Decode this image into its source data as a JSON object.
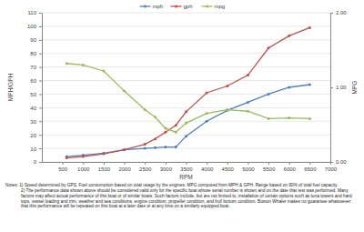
{
  "chart_data": {
    "type": "line",
    "x_label": "RPM",
    "y_label": "MPH/GPH",
    "y2_label": "MPG",
    "x": [
      600,
      1000,
      1500,
      2000,
      2500,
      2750,
      3000,
      3250,
      3500,
      4000,
      4500,
      5000,
      5500,
      6000,
      6500
    ],
    "series": [
      {
        "name": "mph",
        "color": "#4f81bd",
        "values": [
          4,
          5,
          6.5,
          9,
          10,
          10.5,
          11,
          11,
          19,
          30,
          38,
          44,
          50,
          55,
          57
        ]
      },
      {
        "name": "gph",
        "color": "#c0504d",
        "values": [
          3,
          4,
          6,
          9,
          13,
          17,
          22,
          27,
          37,
          51,
          56,
          64,
          84,
          93,
          99
        ]
      },
      {
        "name": "mpg",
        "color": "#9bbb59",
        "axis": "y2",
        "values": [
          1.32,
          1.3,
          1.22,
          0.95,
          0.7,
          0.6,
          0.45,
          0.4,
          0.52,
          0.65,
          0.7,
          0.68,
          0.58,
          0.59,
          0.58
        ]
      }
    ],
    "xlim": [
      0,
      7000
    ],
    "xticks": [
      500,
      1000,
      1500,
      2000,
      2500,
      3000,
      3500,
      4000,
      4500,
      5000,
      5500,
      6000,
      6500,
      7000
    ],
    "ylim": [
      0,
      110
    ],
    "yticks": [
      0,
      10,
      20,
      30,
      40,
      50,
      60,
      70,
      80,
      90,
      100,
      110
    ],
    "y2lim": [
      0,
      2
    ],
    "y2ticks": [
      {
        "value": 0,
        "label": "0.00"
      },
      {
        "value": 1,
        "label": "1.00"
      },
      {
        "value": 2,
        "label": "2.00"
      }
    ],
    "grid": true,
    "legend": "top",
    "marker": "circle",
    "annotations": [
      "Notes: 1) Speed determined by GPS. Fuel consumption based on total usage by the engines. MPG computed from MPH & GPH. Range based on 90% of total fuel capacity.",
      "2) The performance data shown above should be considered valid only for the specific boat whose serial number is shown and on the date that test was performed. Many factors may affect actual performance of this boat or of similar boats. Such factors include, but are not limited to, installation of certain options such as tuna towers and hard tops, vessel loading and trim, weather and sea conditions, engine condition, propeller condition, and hull bottom condition. Boston Whaler makes no guarantee whatsoever that this performance will be repeated on this boat at a later date or at any time on a similarly equipped boat."
    ]
  }
}
